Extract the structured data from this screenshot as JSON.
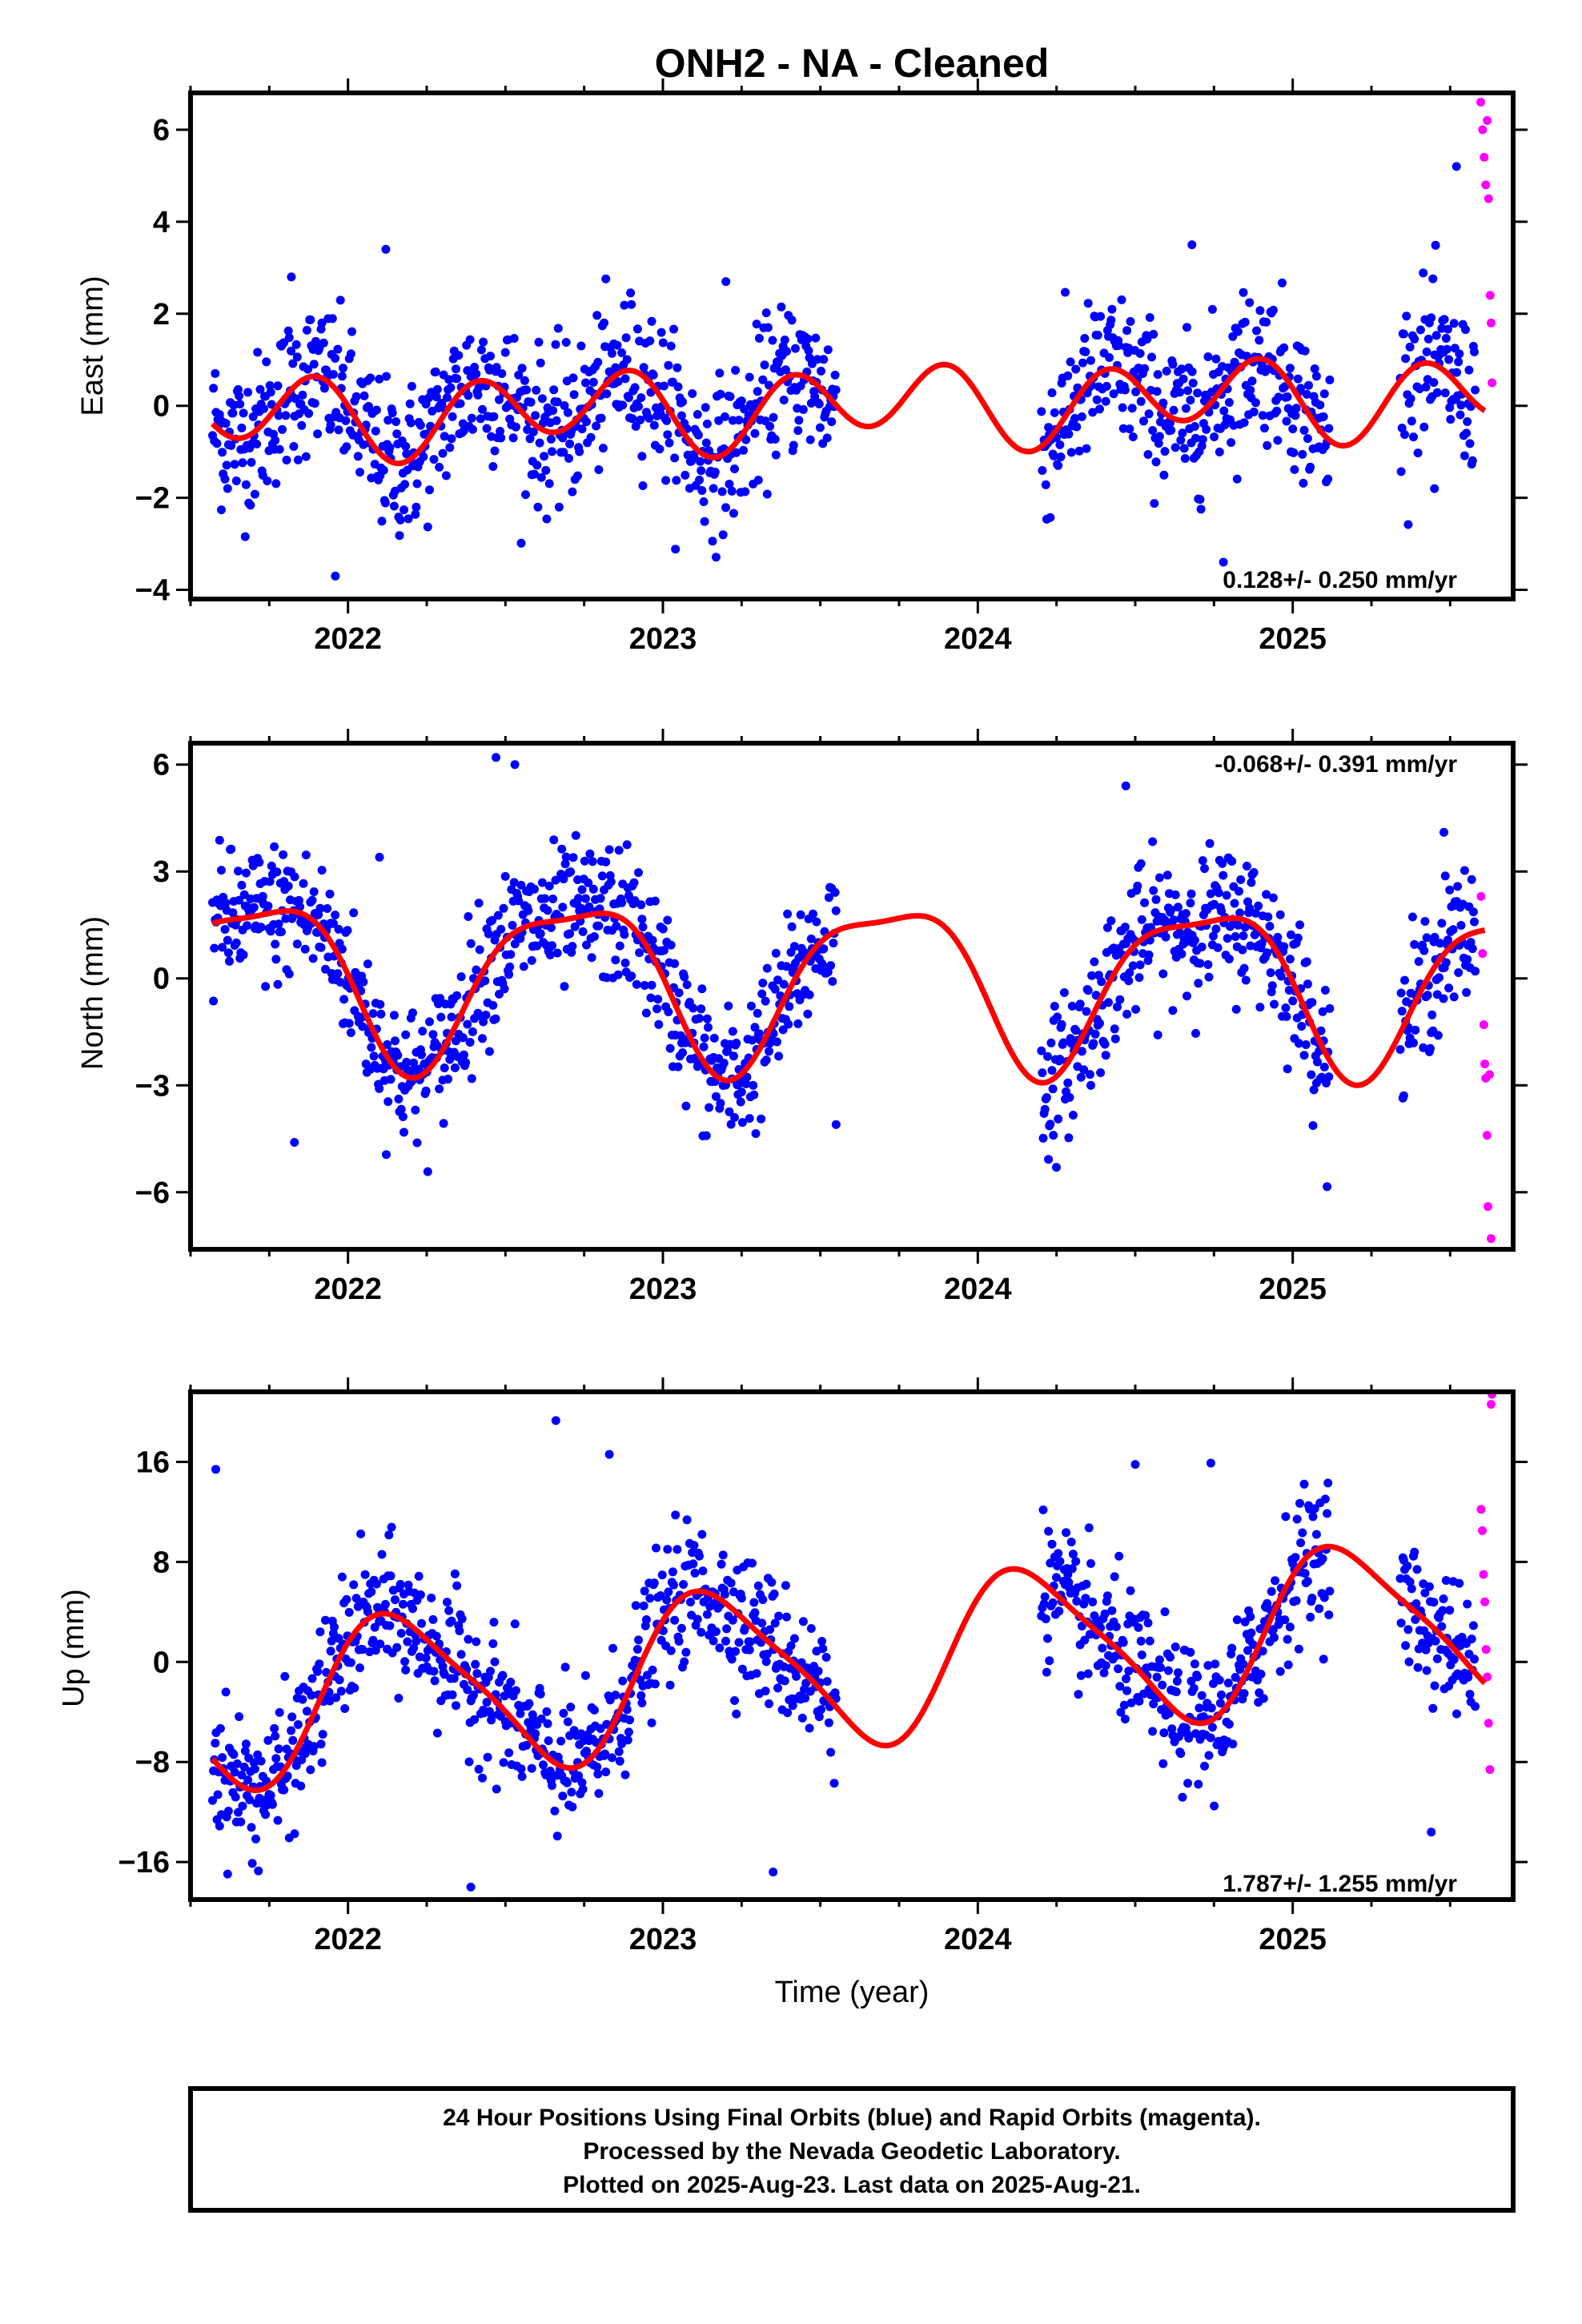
{
  "title": "ONH2  - NA - Cleaned",
  "colors": {
    "final": "#0000ff",
    "rapid": "#ff00ff",
    "model": "#ff0000",
    "frame": "#000000"
  },
  "chart_data": [
    {
      "type": "scatter",
      "id": "east",
      "ylabel": "East (mm)",
      "xlabel": "",
      "xlim": [
        2021.5,
        2025.7
      ],
      "ylim": [
        -4.2,
        6.8
      ],
      "yticks": [
        6,
        4,
        2,
        0,
        -2,
        -4
      ],
      "ytick_labels": [
        "6",
        "4",
        "2",
        "0",
        "−2",
        "−4"
      ],
      "xticks": [
        2022,
        2023,
        2024,
        2025
      ],
      "xtick_labels": [
        "2022",
        "2023",
        "2024",
        "2025"
      ],
      "rate": "0.128+/- 0.250 mm/yr",
      "rate_position": "bottom-right",
      "gaps": [
        [
          2023.55,
          2024.2
        ],
        [
          2025.12,
          2025.34
        ]
      ],
      "model": {
        "mean": 0.0,
        "trend": 0.128,
        "a1": -0.1,
        "b1": -0.3,
        "a2": 0.3,
        "b2": -0.7,
        "ranges": [
          [
            2021.57,
            2025.61
          ]
        ]
      },
      "final_series": {
        "name": "Final Orbits",
        "noise": 1.1,
        "start": 2021.57,
        "end": 2025.58
      },
      "rapid_points": [
        [
          2025.597,
          6.6
        ],
        [
          2025.603,
          6.0
        ],
        [
          2025.608,
          5.4
        ],
        [
          2025.613,
          4.8
        ],
        [
          2025.618,
          6.2
        ],
        [
          2025.622,
          4.5
        ],
        [
          2025.627,
          2.4
        ],
        [
          2025.63,
          1.8
        ],
        [
          2025.633,
          0.5
        ]
      ],
      "scatter_extra": [
        [
          2021.82,
          2.8
        ],
        [
          2022.12,
          3.4
        ],
        [
          2023.2,
          2.7
        ],
        [
          2024.68,
          3.5
        ],
        [
          2025.52,
          5.2
        ],
        [
          2025.45,
          -1.8
        ],
        [
          2024.78,
          -3.4
        ],
        [
          2021.96,
          -3.7
        ]
      ]
    },
    {
      "type": "scatter",
      "id": "north",
      "ylabel": "North (mm)",
      "xlabel": "",
      "xlim": [
        2021.5,
        2025.7
      ],
      "ylim": [
        -7.6,
        6.6
      ],
      "yticks": [
        6,
        3,
        0,
        -3,
        -6
      ],
      "ytick_labels": [
        "6",
        "3",
        "0",
        "−3",
        "−6"
      ],
      "xticks": [
        2022,
        2023,
        2024,
        2025
      ],
      "xtick_labels": [
        "2022",
        "2023",
        "2024",
        "2025"
      ],
      "rate": "-0.068+/- 0.391 mm/yr",
      "rate_position": "top-right",
      "gaps": [
        [
          2023.55,
          2024.2
        ],
        [
          2025.12,
          2025.34
        ]
      ],
      "model": {
        "mean": 0.0,
        "trend": -0.068,
        "a1": -0.5,
        "b1": -2.2,
        "a2": 0.5,
        "b2": -0.4,
        "ranges": [
          [
            2021.57,
            2025.61
          ]
        ]
      },
      "final_series": {
        "name": "Final Orbits",
        "noise": 1.3,
        "start": 2021.57,
        "end": 2025.58
      },
      "rapid_points": [
        [
          2025.598,
          2.3
        ],
        [
          2025.603,
          0.7
        ],
        [
          2025.607,
          -1.3
        ],
        [
          2025.61,
          -2.4
        ],
        [
          2025.613,
          -2.8
        ],
        [
          2025.617,
          -4.4
        ],
        [
          2025.62,
          -6.4
        ],
        [
          2025.625,
          -2.7
        ],
        [
          2025.63,
          -7.3
        ]
      ],
      "scatter_extra": [
        [
          2022.47,
          6.2
        ],
        [
          2022.53,
          6.0
        ],
        [
          2024.47,
          5.4
        ],
        [
          2025.48,
          4.1
        ],
        [
          2024.24,
          -4.4
        ],
        [
          2023.55,
          -4.1
        ],
        [
          2021.83,
          -4.6
        ],
        [
          2022.1,
          3.4
        ]
      ]
    },
    {
      "type": "scatter",
      "id": "up",
      "ylabel": "Up (mm)",
      "xlabel": "Time (year)",
      "xlim": [
        2021.5,
        2025.7
      ],
      "ylim": [
        -19.0,
        21.6
      ],
      "yticks": [
        16,
        8,
        0,
        -8,
        -16
      ],
      "ytick_labels": [
        "16",
        "8",
        "0",
        "−8",
        "−16"
      ],
      "xticks": [
        2022,
        2023,
        2024,
        2025
      ],
      "xtick_labels": [
        "2022",
        "2023",
        "2024",
        "2025"
      ],
      "rate": "1.787+/- 1.255 mm/yr",
      "rate_position": "bottom-right",
      "gaps": [
        [
          2023.55,
          2024.2
        ],
        [
          2025.12,
          2025.34
        ]
      ],
      "model": {
        "mean": 0.0,
        "trend": 1.787,
        "a1": 3.2,
        "b1": 5.4,
        "a2": 1.2,
        "b2": 0.4,
        "ranges": [
          [
            2021.57,
            2025.61
          ]
        ]
      },
      "final_series": {
        "name": "Final Orbits",
        "noise": 3.6,
        "start": 2021.57,
        "end": 2025.58
      },
      "rapid_points": [
        [
          2025.598,
          12.2
        ],
        [
          2025.602,
          10.5
        ],
        [
          2025.606,
          7.0
        ],
        [
          2025.61,
          4.8
        ],
        [
          2025.614,
          1.0
        ],
        [
          2025.618,
          -1.2
        ],
        [
          2025.622,
          -4.9
        ],
        [
          2025.626,
          -8.6
        ],
        [
          2025.63,
          20.6
        ],
        [
          2025.633,
          21.4
        ]
      ],
      "scatter_extra": [
        [
          2022.66,
          19.3
        ],
        [
          2022.83,
          16.6
        ],
        [
          2024.74,
          15.9
        ],
        [
          2024.5,
          15.8
        ],
        [
          2022.39,
          -18.0
        ],
        [
          2023.35,
          -16.8
        ],
        [
          2025.44,
          -13.6
        ],
        [
          2021.58,
          15.4
        ]
      ]
    }
  ],
  "caption": {
    "lines": [
      "24 Hour Positions Using Final Orbits (blue) and Rapid Orbits (magenta).",
      "Processed by the Nevada Geodetic Laboratory.",
      "Plotted on 2025-Aug-23. Last data on 2025-Aug-21."
    ]
  }
}
